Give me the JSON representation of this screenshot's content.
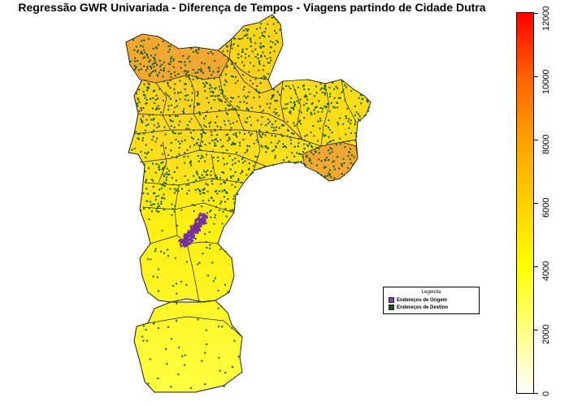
{
  "title": "Regressão GWR Univariada - Diferença de Tempos - Viagens partindo de Cidade Dutra",
  "legend": {
    "title": "Legenda",
    "items": [
      {
        "label": "Endereços de Origem",
        "color": "#8a3ab9"
      },
      {
        "label": "Endereços de Destino",
        "color": "#0b5a1a"
      }
    ]
  },
  "colorbar": {
    "min": 0,
    "max": 12000,
    "ticks": [
      "0",
      "2000",
      "4000",
      "6000",
      "8000",
      "10000",
      "12000"
    ],
    "colors": [
      "#ffffff",
      "#ffff80",
      "#ffff00",
      "#ffd000",
      "#ffa000",
      "#ff6000",
      "#ff0000"
    ]
  },
  "colors": {
    "region_low": "#ffff20",
    "region_mid": "#ffe000",
    "region_high": "#f0a830",
    "border": "#1a1a1a"
  }
}
